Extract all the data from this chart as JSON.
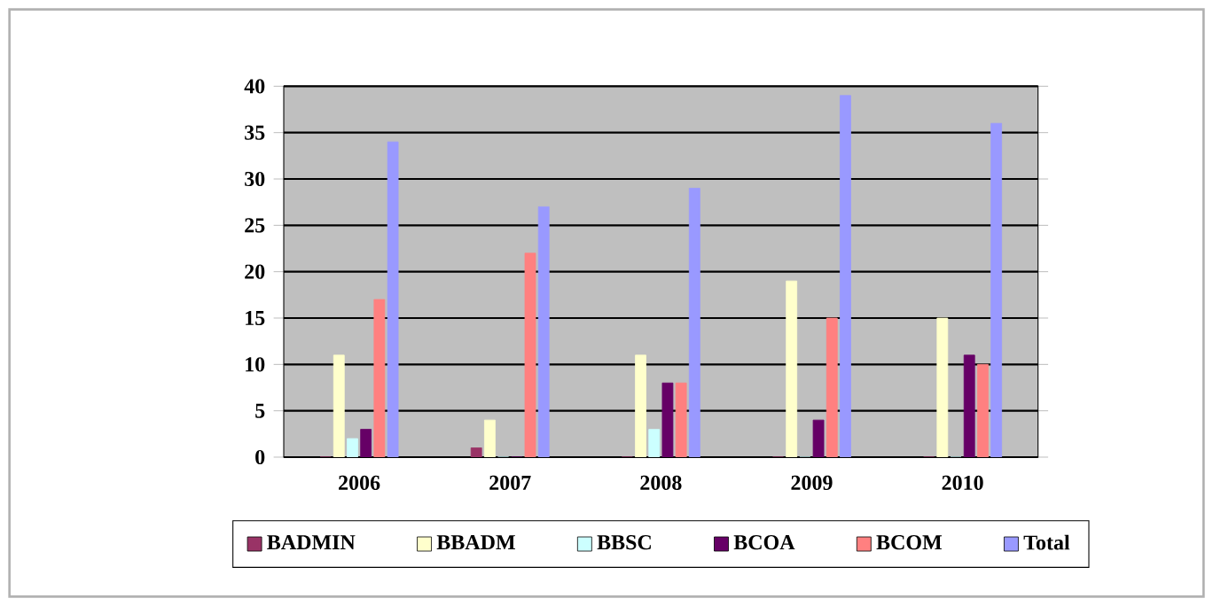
{
  "chart_data": {
    "type": "bar",
    "categories": [
      "2006",
      "2007",
      "2008",
      "2009",
      "2010"
    ],
    "series": [
      {
        "name": "BADMIN",
        "color": "#993366",
        "values": [
          0,
          1,
          0,
          0,
          0
        ]
      },
      {
        "name": "BBADM",
        "color": "#ffffcc",
        "values": [
          11,
          4,
          11,
          19,
          15
        ]
      },
      {
        "name": "BBSC",
        "color": "#ccffff",
        "values": [
          2,
          0,
          3,
          0,
          0
        ]
      },
      {
        "name": "BCOA",
        "color": "#660066",
        "values": [
          3,
          0,
          8,
          4,
          11
        ]
      },
      {
        "name": "BCOM",
        "color": "#ff8080",
        "values": [
          17,
          22,
          8,
          15,
          10
        ]
      },
      {
        "name": "Total",
        "color": "#9999ff",
        "values": [
          34,
          27,
          29,
          39,
          36
        ]
      }
    ],
    "ylim": [
      0,
      40
    ],
    "yticks": [
      0,
      5,
      10,
      15,
      20,
      25,
      30,
      35,
      40
    ],
    "grid": "y",
    "legend": "bottom"
  }
}
